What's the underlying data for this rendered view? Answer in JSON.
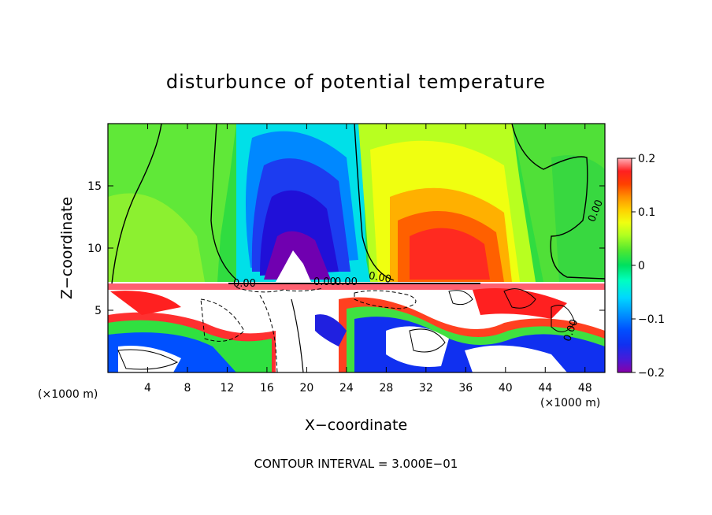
{
  "chart_data": {
    "type": "heatmap",
    "title": "disturbunce of potential temperature",
    "xlabel": "X−coordinate",
    "ylabel": "Z−coordinate",
    "x_unit_note": "(×1000 m)",
    "x_unit_note_right": "(×1000 m)",
    "footer": "CONTOUR INTERVAL = 3.000E−01",
    "xlim": [
      0,
      50
    ],
    "ylim": [
      0,
      20
    ],
    "x_ticks": [
      4,
      8,
      12,
      16,
      20,
      24,
      28,
      32,
      36,
      40,
      44,
      48
    ],
    "y_ticks": [
      5,
      10,
      15
    ],
    "colorbar": {
      "range": [
        -0.2,
        0.2
      ],
      "tick_values": [
        0.2,
        0.1,
        0,
        -0.1,
        -0.2
      ],
      "tick_labels": [
        "0.2",
        "0.1",
        "0",
        "−0.1",
        "−0.2"
      ],
      "colors": [
        "#8800a8",
        "#4a1ad8",
        "#1030f0",
        "#0050ff",
        "#0080ff",
        "#00b0ff",
        "#00e0ff",
        "#00ffc8",
        "#00f070",
        "#30e030",
        "#70f040",
        "#b0ff20",
        "#e8ff10",
        "#ffe000",
        "#ffb000",
        "#ff8000",
        "#ff5000",
        "#ff2020",
        "#ff6070",
        "#ffb0b8"
      ]
    },
    "contour_labels": [
      "0.00",
      "0.00",
      "0.00",
      "0.00",
      "0.00",
      "0.00"
    ],
    "features": [
      {
        "name": "cold-anomaly",
        "x": 19,
        "z": 12,
        "value": -0.2
      },
      {
        "name": "warm-anomaly",
        "x": 33,
        "z": 11,
        "value": 0.15
      }
    ]
  }
}
